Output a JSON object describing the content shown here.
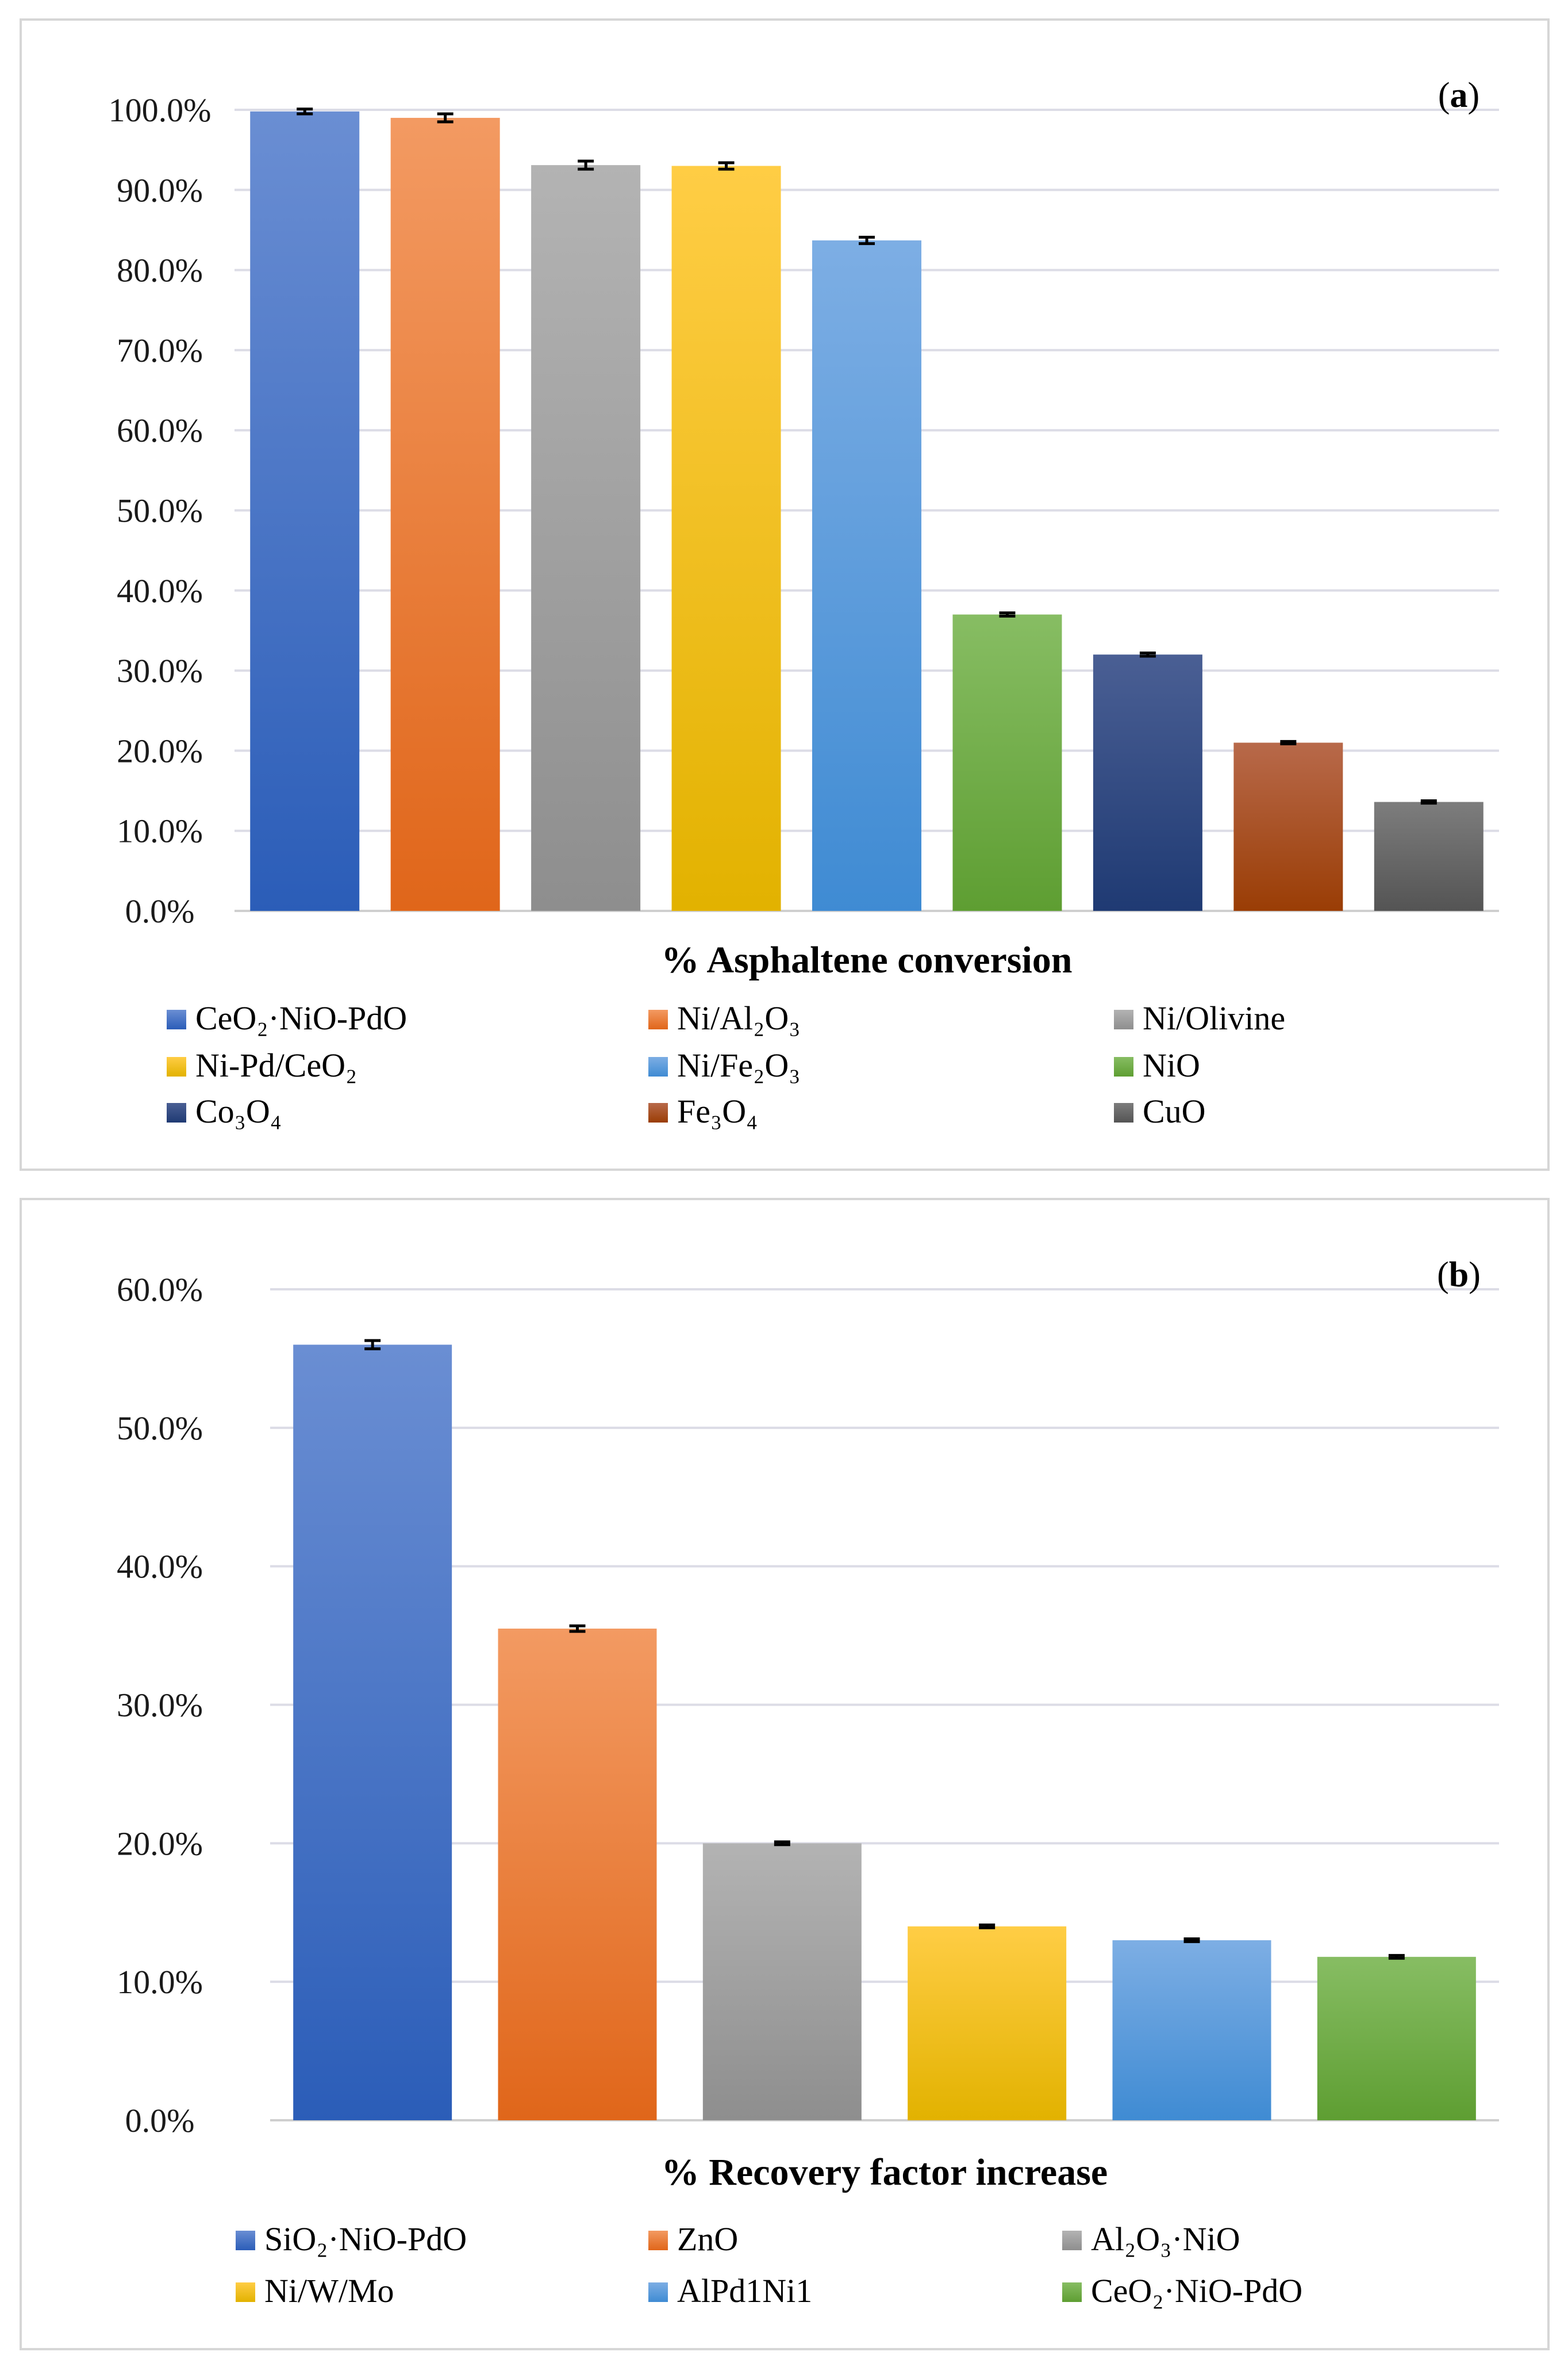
{
  "chart_data": [
    {
      "id": "a",
      "type": "bar",
      "panel_label": "a",
      "xlabel": "% Asphaltene conversion",
      "ylim": [
        0,
        100
      ],
      "yticks": [
        "0.0%",
        "10.0%",
        "20.0%",
        "30.0%",
        "40.0%",
        "50.0%",
        "60.0%",
        "70.0%",
        "80.0%",
        "90.0%",
        "100.0%"
      ],
      "grid": true,
      "legend_position": "bottom",
      "categories": [
        "CeO₂·NiO-PdO",
        "Ni/Al₂O₃",
        "Ni/Olivine",
        "Ni-Pd/CeO₂",
        "Ni/Fe₂O₃",
        "NiO",
        "Co₃O₄",
        "Fe₃O₄",
        "CuO"
      ],
      "values": [
        99.8,
        99.0,
        93.1,
        93.0,
        83.7,
        37.0,
        32.0,
        21.0,
        13.6
      ],
      "errors": [
        0.3,
        0.5,
        0.5,
        0.4,
        0.4,
        0.2,
        0.2,
        0.15,
        0.15
      ],
      "colors": [
        [
          "#6a8ed3",
          "#2b5db8"
        ],
        [
          "#f39a62",
          "#e0661a"
        ],
        [
          "#b3b3b3",
          "#8e8e8e"
        ],
        [
          "#ffcd45",
          "#e2b200"
        ],
        [
          "#7daee4",
          "#3f8bd3"
        ],
        [
          "#87bd63",
          "#5e9e32"
        ],
        [
          "#4a5f94",
          "#1f3a73"
        ],
        [
          "#b8694a",
          "#9a3d05"
        ],
        [
          "#7d7d7d",
          "#545454"
        ]
      ]
    },
    {
      "id": "b",
      "type": "bar",
      "panel_label": "b",
      "xlabel": "% Recovery factor increase",
      "ylim": [
        0,
        60
      ],
      "yticks": [
        "0.0%",
        "10.0%",
        "20.0%",
        "30.0%",
        "40.0%",
        "50.0%",
        "60.0%"
      ],
      "grid": true,
      "legend_position": "bottom",
      "categories": [
        "SiO₂·NiO-PdO",
        "ZnO",
        "Al₂O₃·NiO",
        "Ni/W/Mo",
        "AlPd1Ni1",
        "CeO₂·NiO-PdO"
      ],
      "values": [
        56.0,
        35.5,
        20.0,
        14.0,
        13.0,
        11.8
      ],
      "errors": [
        0.3,
        0.2,
        0.1,
        0.1,
        0.1,
        0.1
      ],
      "colors": [
        [
          "#6a8ed3",
          "#2b5db8"
        ],
        [
          "#f39a62",
          "#e0661a"
        ],
        [
          "#b3b3b3",
          "#8e8e8e"
        ],
        [
          "#ffcd45",
          "#e2b200"
        ],
        [
          "#7daee4",
          "#3f8bd3"
        ],
        [
          "#87bd63",
          "#5e9e32"
        ]
      ]
    }
  ]
}
